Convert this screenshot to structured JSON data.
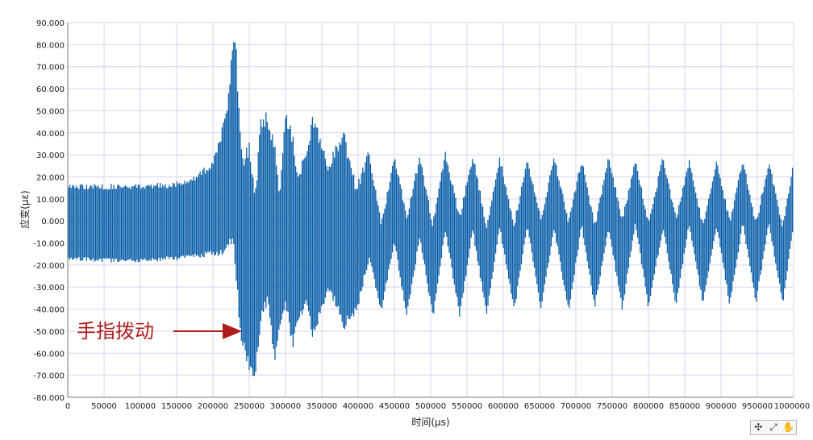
{
  "chart_data": {
    "type": "line",
    "xlabel": "时间(μs)",
    "ylabel": "应变(με)",
    "xlim": [
      0,
      1000000
    ],
    "ylim": [
      -80,
      90
    ],
    "grid": true,
    "x_ticks": [
      0,
      50000,
      100000,
      150000,
      200000,
      250000,
      300000,
      350000,
      400000,
      450000,
      500000,
      550000,
      600000,
      650000,
      700000,
      750000,
      800000,
      850000,
      900000,
      950000,
      1000000
    ],
    "x_tick_labels": [
      "0",
      "50000",
      "100000",
      "150000",
      "200000",
      "250000",
      "300000",
      "350000",
      "400000",
      "450000",
      "500000",
      "550000",
      "600000",
      "650000",
      "700000",
      "750000",
      "800000",
      "850000",
      "900000",
      "950000",
      "1000000"
    ],
    "y_ticks": [
      90,
      80,
      70,
      60,
      50,
      40,
      30,
      20,
      10,
      0,
      -10,
      -20,
      -30,
      -40,
      -50,
      -60,
      -70,
      -80
    ],
    "y_tick_labels": [
      "90.000",
      "80.000",
      "70.000",
      "60.000",
      "50.000",
      "40.000",
      "30.000",
      "20.000",
      "10.000",
      "0.000",
      "-10.000",
      "-20.000",
      "-30.000",
      "-40.000",
      "-50.000",
      "-60.000",
      "-70.000",
      "-80.000"
    ],
    "series": [
      {
        "color": "#0a5ea8",
        "envelope": {
          "x": [
            0,
            50000,
            100000,
            150000,
            180000,
            200000,
            210000,
            220000,
            228000,
            232000,
            236000,
            240000,
            250000,
            258000,
            266000,
            275000,
            285000,
            292000,
            300000,
            310000,
            318000,
            328000,
            338000,
            348000,
            358000,
            368000,
            380000,
            398000,
            415000,
            432000,
            450000,
            467000,
            485000,
            503000,
            520000,
            540000,
            558000,
            577000,
            595000,
            615000,
            633000,
            652000,
            670000,
            690000,
            708000,
            726000,
            745000,
            764000,
            782000,
            800000,
            820000,
            838000,
            856000,
            875000,
            894000,
            912000,
            930000,
            948000,
            966000,
            985000,
            1000000
          ],
          "upper": [
            17,
            17,
            17,
            18,
            22,
            28,
            38,
            55,
            85,
            82,
            50,
            30,
            36,
            12,
            47,
            50,
            38,
            14,
            50,
            42,
            20,
            35,
            50,
            40,
            26,
            34,
            42,
            16,
            33,
            0,
            30,
            4,
            30,
            0,
            32,
            3,
            31,
            -1,
            30,
            0,
            29,
            2,
            30,
            1,
            29,
            -1,
            30,
            2,
            29,
            0,
            30,
            2,
            28,
            0,
            28,
            1,
            29,
            0,
            28,
            -1,
            28
          ],
          "lower": [
            -18,
            -19,
            -19,
            -18,
            -17,
            -16,
            -16,
            -14,
            -10,
            -28,
            -45,
            -57,
            -68,
            -72,
            -46,
            -38,
            -66,
            -50,
            -38,
            -60,
            -45,
            -40,
            -55,
            -44,
            -33,
            -38,
            -50,
            -42,
            -18,
            -42,
            -10,
            -45,
            -8,
            -45,
            -5,
            -44,
            -5,
            -44,
            -4,
            -42,
            -3,
            -41,
            -4,
            -42,
            -3,
            -40,
            -4,
            -41,
            -2,
            -40,
            -4,
            -39,
            -2,
            -39,
            -3,
            -39,
            -2,
            -38,
            -2,
            -39,
            -2
          ]
        }
      }
    ],
    "annotations": [
      {
        "text": "手指拨动",
        "arrow_to": {
          "x": 242000,
          "y": -48
        }
      }
    ]
  },
  "toolbar": {
    "cursor_icon": "✣",
    "zoom_icon": "⤢",
    "pan_icon": "✋"
  }
}
